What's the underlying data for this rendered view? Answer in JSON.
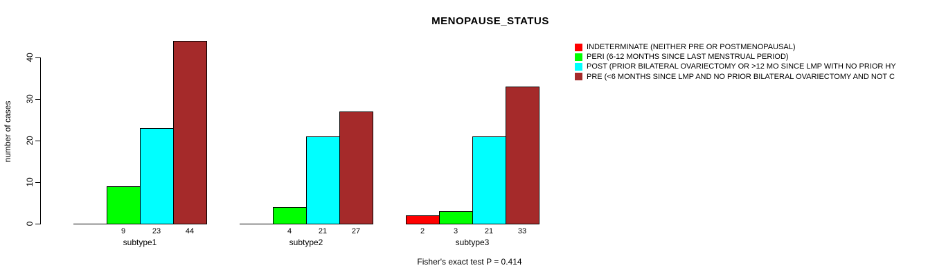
{
  "title": "MENOPAUSE_STATUS",
  "chart_data": {
    "type": "bar",
    "title": "MENOPAUSE_STATUS",
    "xlabel": "",
    "ylabel": "number of cases",
    "ylim": [
      0,
      40
    ],
    "yticks": [
      0,
      10,
      20,
      30,
      40
    ],
    "grid": false,
    "legend_position": "right",
    "categories": [
      "subtype1",
      "subtype2",
      "subtype3"
    ],
    "series": [
      {
        "name": "INDETERMINATE (NEITHER PRE OR POSTMENOPAUSAL)",
        "color": "#FF0000",
        "values": [
          0,
          0,
          2
        ]
      },
      {
        "name": "PERI (6-12 MONTHS SINCE LAST MENSTRUAL PERIOD)",
        "color": "#00FF00",
        "values": [
          9,
          4,
          3
        ]
      },
      {
        "name": "POST (PRIOR BILATERAL OVARIECTOMY OR >12 MO SINCE LMP WITH NO PRIOR HY",
        "color": "#00FFFF",
        "values": [
          23,
          21,
          21
        ]
      },
      {
        "name": "PRE (<6 MONTHS SINCE LMP AND NO PRIOR BILATERAL OVARIECTOMY AND NOT C",
        "color": "#A52A2A",
        "values": [
          44,
          27,
          33
        ]
      }
    ],
    "bar_value_labels": {
      "subtype1": [
        null,
        "9",
        "23",
        "44"
      ],
      "subtype2": [
        null,
        "4",
        "21",
        "27"
      ],
      "subtype3": [
        "2",
        "3",
        "21",
        "33"
      ]
    },
    "annotation": "Fisher's exact test P = 0.414"
  },
  "colors": {
    "indeterminate": "#FF0000",
    "peri": "#00FF00",
    "post": "#00FFFF",
    "pre": "#A52A2A",
    "axis": "#000000",
    "background": "#FFFFFF"
  }
}
